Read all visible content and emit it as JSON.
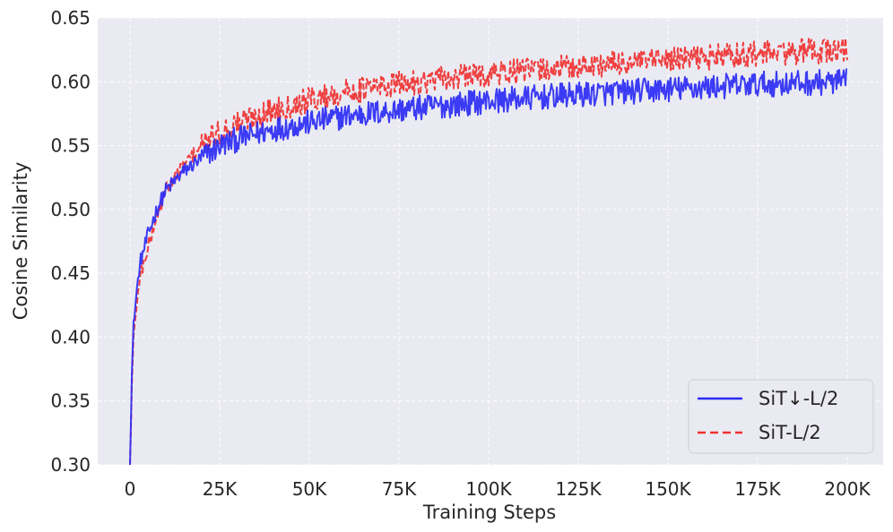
{
  "chart_data": {
    "type": "line",
    "xlabel": "Training Steps",
    "ylabel": "Cosine Similarity",
    "xlim": [
      -9000,
      210000
    ],
    "ylim": [
      0.3,
      0.65
    ],
    "xticks": [
      {
        "value": 0,
        "label": "0"
      },
      {
        "value": 25000,
        "label": "25K"
      },
      {
        "value": 50000,
        "label": "50K"
      },
      {
        "value": 75000,
        "label": "75K"
      },
      {
        "value": 100000,
        "label": "100K"
      },
      {
        "value": 125000,
        "label": "125K"
      },
      {
        "value": 150000,
        "label": "150K"
      },
      {
        "value": 175000,
        "label": "175K"
      },
      {
        "value": 200000,
        "label": "200K"
      }
    ],
    "yticks": [
      {
        "value": 0.3,
        "label": "0.30"
      },
      {
        "value": 0.35,
        "label": "0.35"
      },
      {
        "value": 0.4,
        "label": "0.40"
      },
      {
        "value": 0.45,
        "label": "0.45"
      },
      {
        "value": 0.5,
        "label": "0.50"
      },
      {
        "value": 0.55,
        "label": "0.55"
      },
      {
        "value": 0.6,
        "label": "0.60"
      },
      {
        "value": 0.65,
        "label": "0.65"
      }
    ],
    "grid": true,
    "legend_position": "lower-right",
    "series": [
      {
        "name": "SiT↓-L/2",
        "color": "#2b2bf5",
        "style": "solid",
        "x": [
          0,
          500,
          1000,
          2000,
          3000,
          5000,
          7500,
          10000,
          15000,
          20000,
          25000,
          30000,
          40000,
          50000,
          60000,
          75000,
          90000,
          100000,
          125000,
          150000,
          175000,
          200000
        ],
        "y": [
          0.3,
          0.37,
          0.41,
          0.44,
          0.46,
          0.48,
          0.5,
          0.515,
          0.53,
          0.54,
          0.55,
          0.555,
          0.563,
          0.568,
          0.573,
          0.578,
          0.582,
          0.585,
          0.59,
          0.594,
          0.598,
          0.6
        ]
      },
      {
        "name": "SiT-L/2",
        "color": "#f03030",
        "style": "dashed",
        "x": [
          0,
          500,
          1000,
          2000,
          3000,
          5000,
          7500,
          10000,
          15000,
          20000,
          25000,
          30000,
          40000,
          50000,
          60000,
          75000,
          90000,
          100000,
          125000,
          150000,
          175000,
          200000
        ],
        "y": [
          0.3,
          0.36,
          0.4,
          0.43,
          0.45,
          0.47,
          0.495,
          0.515,
          0.535,
          0.55,
          0.56,
          0.568,
          0.578,
          0.586,
          0.592,
          0.598,
          0.603,
          0.606,
          0.612,
          0.617,
          0.622,
          0.625
        ]
      }
    ]
  }
}
